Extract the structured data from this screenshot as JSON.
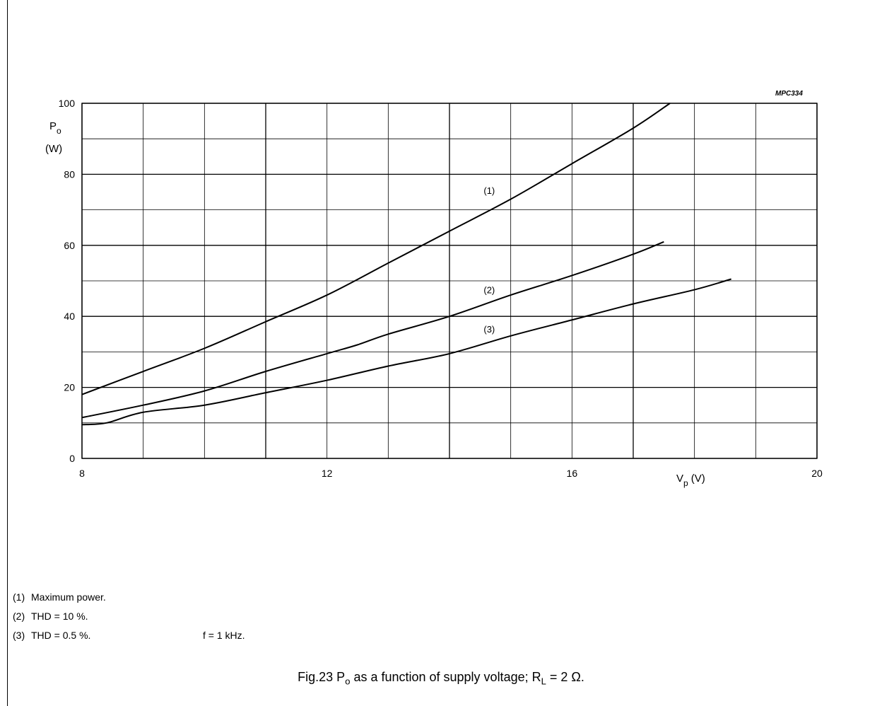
{
  "chart_data": {
    "type": "line",
    "figure_code": "MPC334",
    "ylabel_main": "P",
    "ylabel_sub": "o",
    "ylabel_unit": "(W)",
    "xlabel_main": "V",
    "xlabel_sub": "p",
    "xlabel_unit": "(V)",
    "xlim": [
      8,
      20
    ],
    "ylim": [
      0,
      100
    ],
    "x_tick_labels": [
      "8",
      "12",
      "16",
      "20"
    ],
    "y_tick_labels": [
      "0",
      "20",
      "40",
      "60",
      "80",
      "100"
    ],
    "grid": true,
    "series": [
      {
        "name": "(1)",
        "x": [
          8,
          9,
          10,
          11,
          12,
          13,
          14,
          15,
          16,
          17,
          17.6
        ],
        "y": [
          18,
          24.5,
          31,
          38.5,
          46,
          55,
          64,
          73,
          83,
          93,
          100
        ]
      },
      {
        "name": "(2)",
        "x": [
          8,
          9,
          10,
          11,
          12,
          12.5,
          13,
          14,
          15,
          16,
          17,
          17.5
        ],
        "y": [
          11.5,
          15,
          19,
          24.5,
          29.5,
          32,
          35,
          40,
          46,
          51.5,
          57.5,
          61
        ]
      },
      {
        "name": "(3)",
        "x": [
          8,
          8.4,
          9,
          10,
          11,
          12,
          13,
          14,
          15,
          16,
          17,
          18,
          18.6
        ],
        "y": [
          9.5,
          10,
          13,
          15,
          18.5,
          22,
          26,
          29.5,
          34.5,
          39,
          43.5,
          47.5,
          50.5
        ]
      }
    ],
    "curve_label_positions": [
      {
        "label": "(1)",
        "x": 14.65,
        "y": 74.5
      },
      {
        "label": "(2)",
        "x": 14.65,
        "y": 46.5
      },
      {
        "label": "(3)",
        "x": 14.65,
        "y": 35.5
      }
    ]
  },
  "notes": [
    {
      "num": "(1)",
      "text": "Maximum power."
    },
    {
      "num": "(2)",
      "text": "THD = 10 %."
    },
    {
      "num": "(3)",
      "text": "THD = 0.5 %."
    }
  ],
  "condition": "f = 1 kHz.",
  "caption": {
    "prefix": "Fig.23  P",
    "sub1": "o",
    "middle": " as a function of supply voltage; R",
    "sub2": "L",
    "suffix": " = 2 Ω."
  }
}
